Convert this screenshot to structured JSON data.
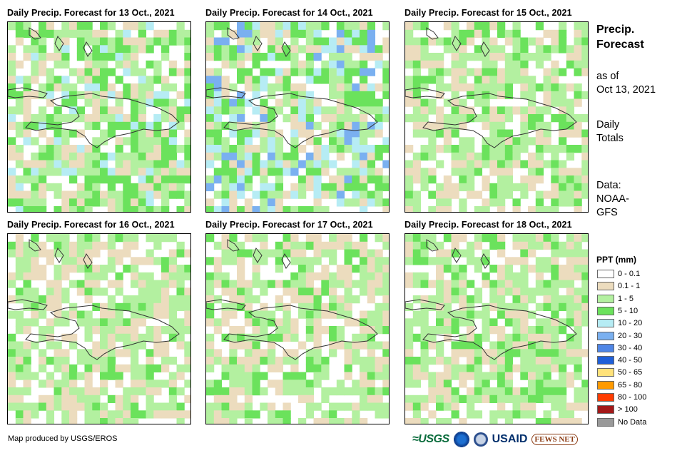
{
  "panels": [
    {
      "title": "Daily Precip. Forecast for 13 Oct., 2021"
    },
    {
      "title": "Daily Precip. Forecast for 14 Oct., 2021"
    },
    {
      "title": "Daily Precip. Forecast for 15 Oct., 2021"
    },
    {
      "title": "Daily Precip. Forecast for 16 Oct., 2021"
    },
    {
      "title": "Daily Precip. Forecast for 17 Oct., 2021"
    },
    {
      "title": "Daily Precip. Forecast for 18 Oct., 2021"
    }
  ],
  "sidebar": {
    "title_line1": "Precip.",
    "title_line2": "Forecast",
    "asof_line1": "as of",
    "asof_line2": "Oct 13, 2021",
    "totals_line1": "Daily",
    "totals_line2": "Totals",
    "data_line1": "Data:",
    "data_line2": "NOAA-",
    "data_line3": "GFS"
  },
  "legend": {
    "title": "PPT (mm)",
    "items": [
      {
        "label": "0 - 0.1",
        "color": "#ffffff"
      },
      {
        "label": "0.1 - 1",
        "color": "#ecdcbe"
      },
      {
        "label": "1 - 5",
        "color": "#b3f0a0"
      },
      {
        "label": "5 - 10",
        "color": "#6be25c"
      },
      {
        "label": "10 - 20",
        "color": "#b6ecf4"
      },
      {
        "label": "20 - 30",
        "color": "#7ab0f0"
      },
      {
        "label": "30 - 40",
        "color": "#4f86e6"
      },
      {
        "label": "40 - 50",
        "color": "#1f5fd8"
      },
      {
        "label": "50 - 65",
        "color": "#ffe27a"
      },
      {
        "label": "65 - 80",
        "color": "#ff9a00"
      },
      {
        "label": "80 - 100",
        "color": "#ff3c00"
      },
      {
        "label": "> 100",
        "color": "#a31818"
      },
      {
        "label": "No Data",
        "color": "#999999"
      }
    ]
  },
  "credit": "Map produced by USGS/EROS",
  "logos": {
    "usgs": "USGS",
    "usaid": "USAID",
    "fews": "FEWS NET"
  }
}
